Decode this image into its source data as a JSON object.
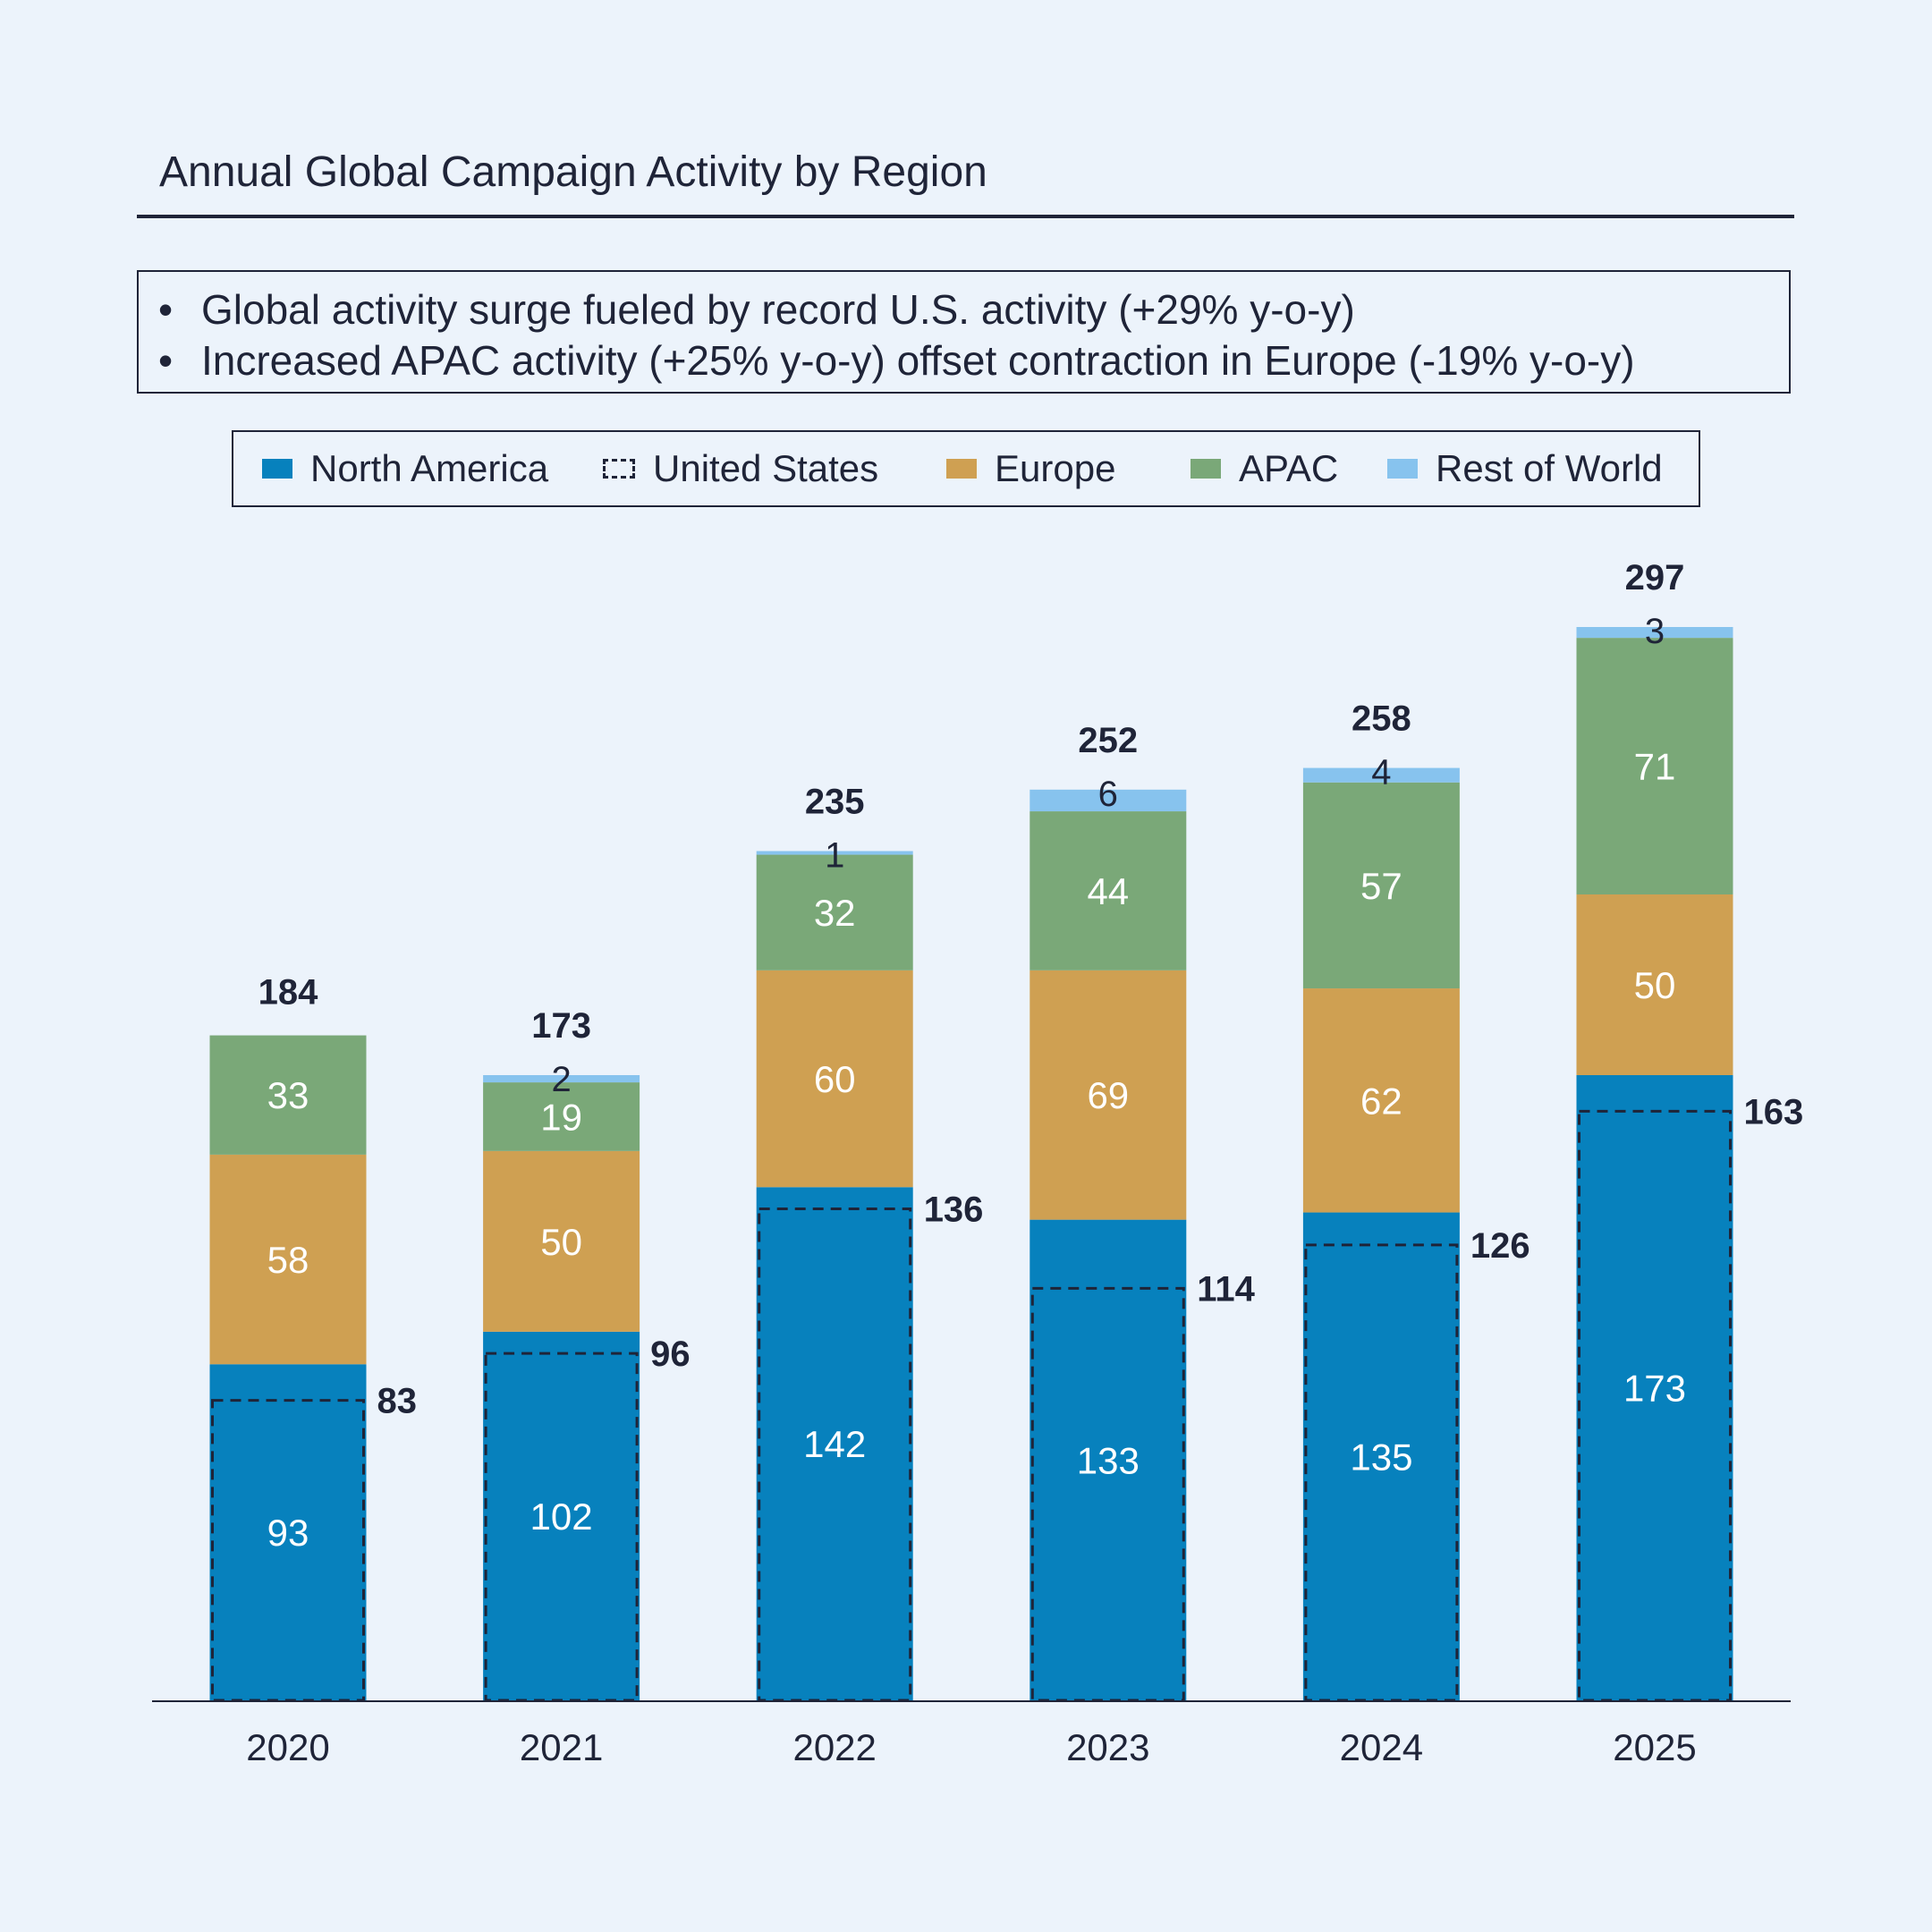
{
  "title": "Annual Global Campaign Activity by Region",
  "notes": [
    "Global activity surge fueled by record U.S. activity (+29% y-o-y)",
    "Increased APAC activity (+25% y-o-y) offset contraction in Europe (-19% y-o-y)"
  ],
  "bullet_glyph": "•",
  "legend": [
    {
      "name": "North America",
      "color": "#0781bd",
      "style": "solid"
    },
    {
      "name": "United States",
      "color": "#1f2438",
      "style": "dashed"
    },
    {
      "name": "Europe",
      "color": "#cfa052",
      "style": "solid"
    },
    {
      "name": "APAC",
      "color": "#7aa878",
      "style": "solid"
    },
    {
      "name": "Rest of World",
      "color": "#87c3ee",
      "style": "solid"
    }
  ],
  "chart_data": {
    "type": "bar",
    "stacked": true,
    "title": "Annual Global Campaign Activity by Region",
    "xlabel": "",
    "ylabel": "",
    "categories": [
      "2020",
      "2021",
      "2022",
      "2023",
      "2024",
      "2025"
    ],
    "series": [
      {
        "name": "North America",
        "color": "#0781bd",
        "values": [
          93,
          102,
          142,
          133,
          135,
          173
        ]
      },
      {
        "name": "Europe",
        "color": "#cfa052",
        "values": [
          58,
          50,
          60,
          69,
          62,
          50
        ]
      },
      {
        "name": "APAC",
        "color": "#7aa878",
        "values": [
          33,
          19,
          32,
          44,
          57,
          71
        ]
      },
      {
        "name": "Rest of World",
        "color": "#87c3ee",
        "values": [
          0,
          2,
          1,
          6,
          4,
          3
        ]
      }
    ],
    "overlay_series": {
      "name": "United States",
      "style": "dashed-outline",
      "values": [
        83,
        96,
        136,
        114,
        126,
        163
      ]
    },
    "totals": [
      184,
      173,
      235,
      252,
      258,
      297
    ],
    "ylim": [
      0,
      297
    ],
    "y_axis_visible": false,
    "grid": false,
    "legend_position": "top-center",
    "label_colors": {
      "inside": "#ffffff",
      "outside": "#1f2438"
    }
  }
}
